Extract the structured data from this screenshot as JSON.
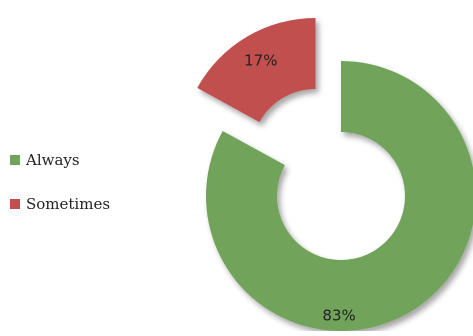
{
  "chart_data": {
    "type": "pie",
    "categories": [
      "Always",
      "Sometimes"
    ],
    "values": [
      83,
      17
    ],
    "labels": [
      "83%",
      "17%"
    ],
    "colors": [
      "#71a45a",
      "#c0504d"
    ],
    "title": "",
    "donut": true,
    "exploded": "Sometimes",
    "legend_position": "left"
  }
}
